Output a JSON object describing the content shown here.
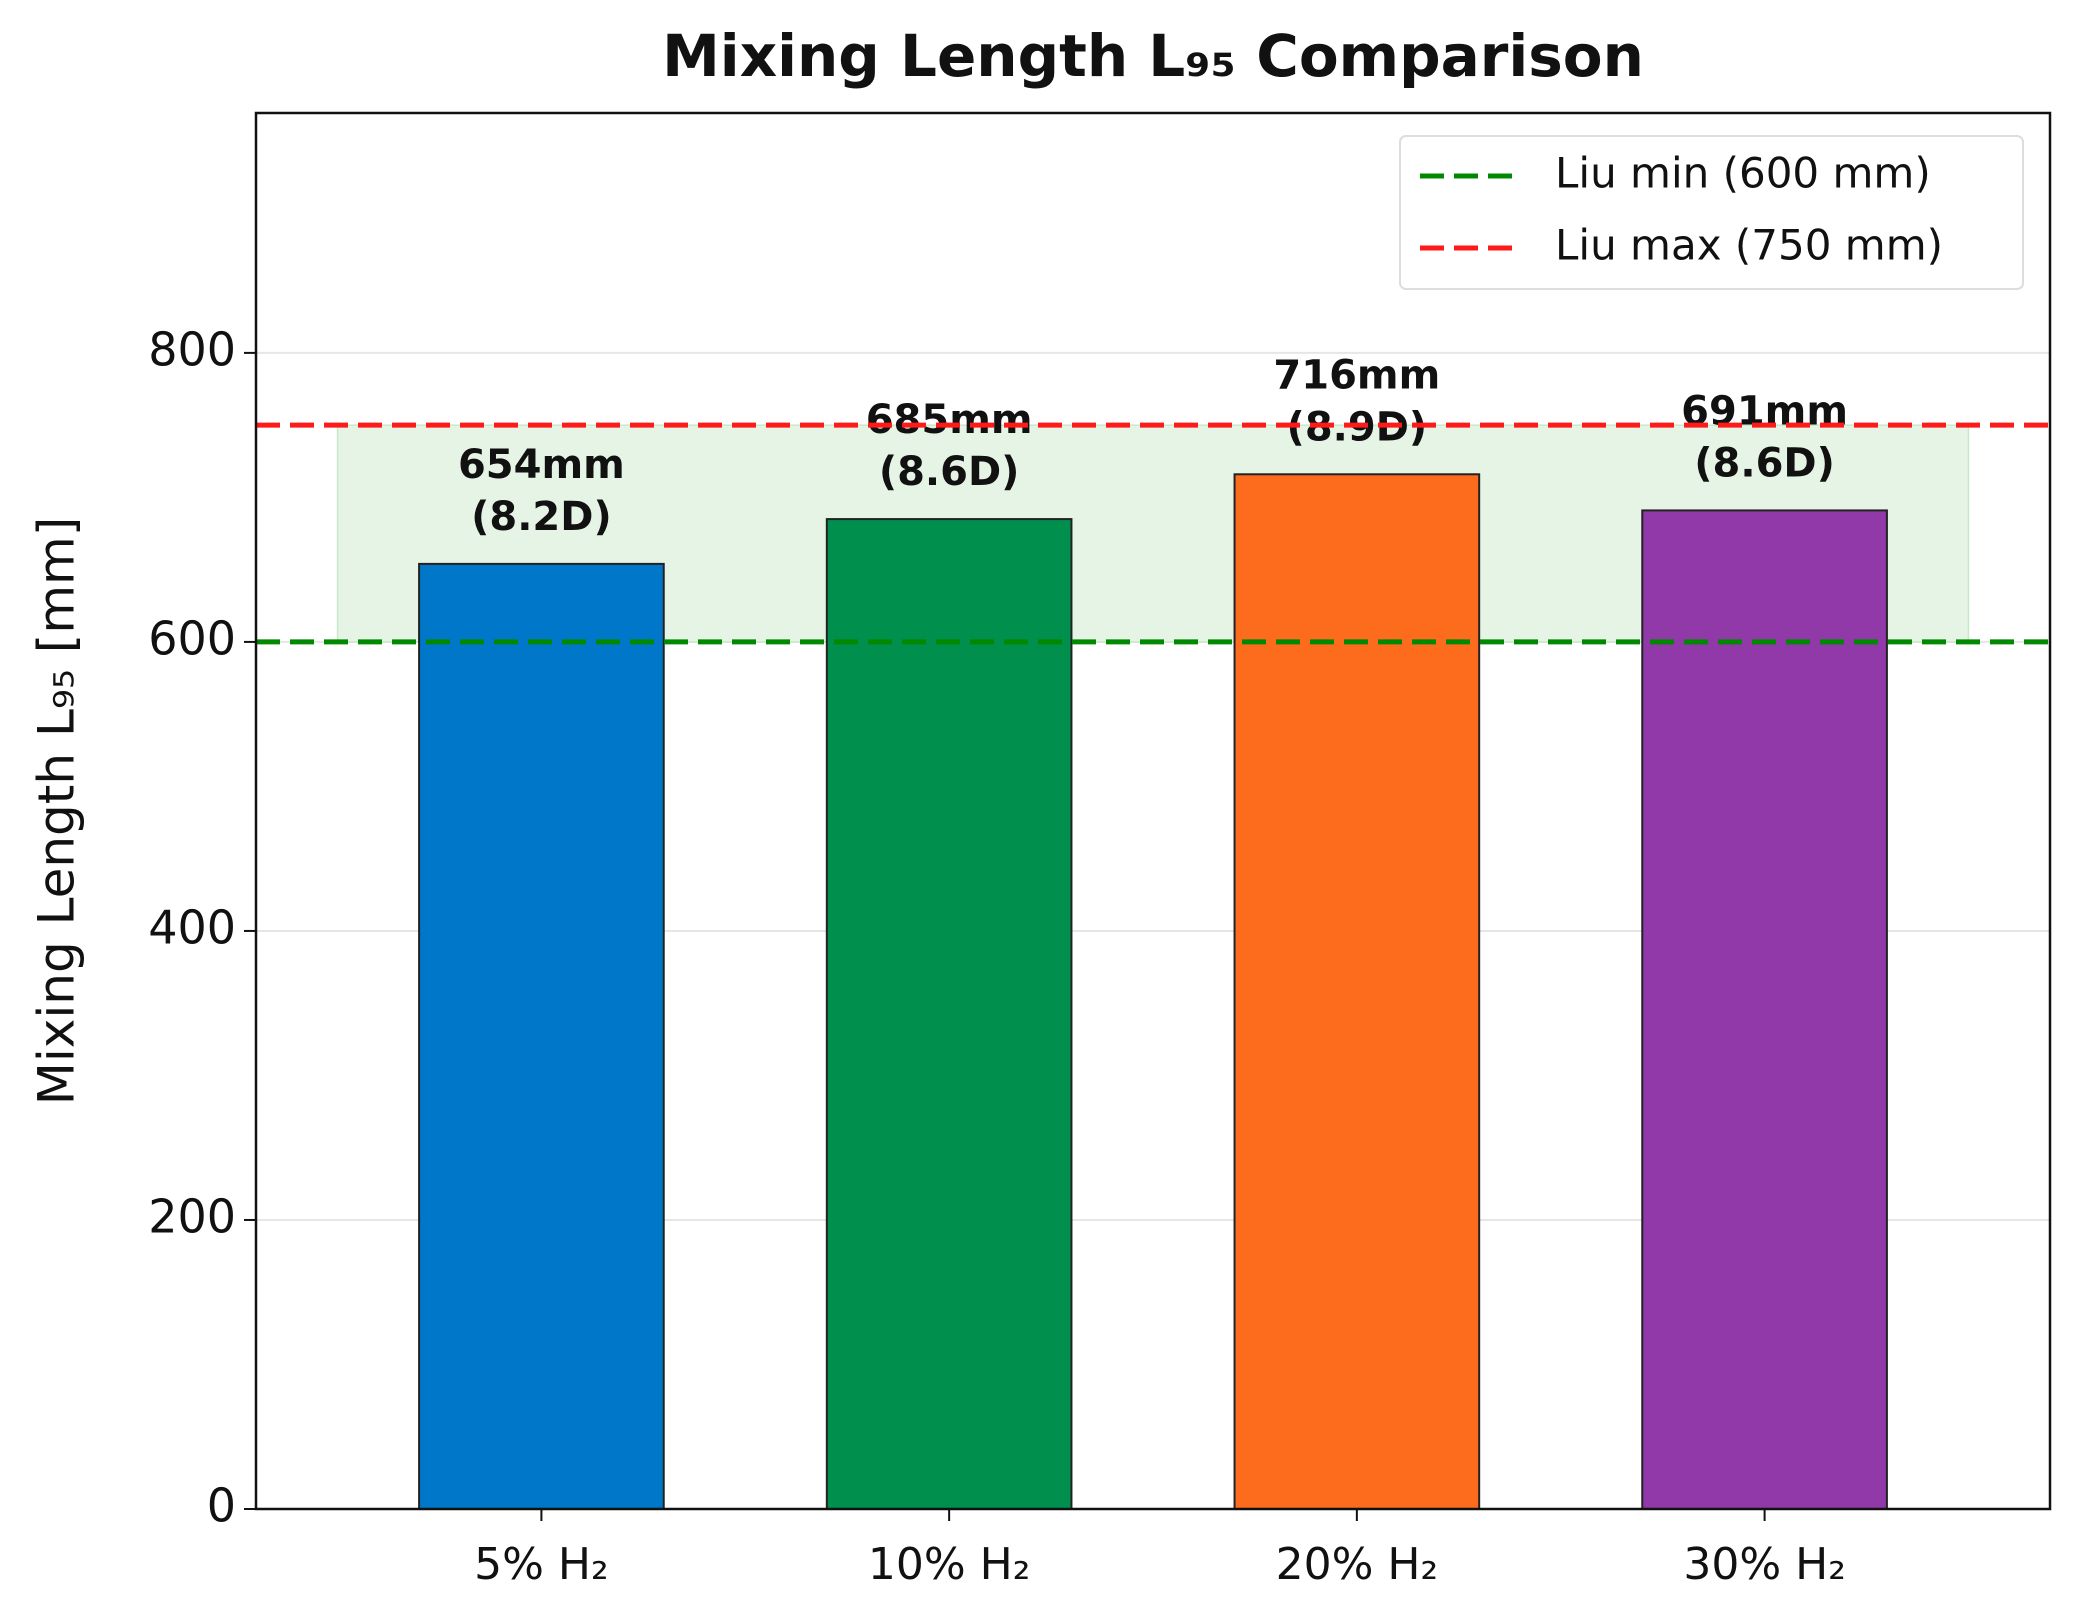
{
  "chart_data": {
    "type": "bar",
    "title": "Mixing Length L₉₅ Comparison",
    "ylabel": "Mixing Length L₉₅ [mm]",
    "categories": [
      "5% H₂",
      "10% H₂",
      "20% H₂",
      "30% H₂"
    ],
    "values": [
      654,
      685,
      716,
      691
    ],
    "value_labels": [
      "654mm",
      "685mm",
      "716mm",
      "691mm"
    ],
    "sub_labels": [
      "(8.2D)",
      "(8.6D)",
      "(8.9D)",
      "(8.6D)"
    ],
    "colors": [
      "#0077c8",
      "#008f4c",
      "#fd6b1c",
      "#9139a8"
    ],
    "ylim": [
      0,
      966
    ],
    "yticks": [
      0,
      200,
      400,
      600,
      800
    ],
    "grid": true,
    "shaded_range": {
      "range": [
        600,
        750
      ],
      "color": "#e6f4e6"
    },
    "reference_lines": [
      {
        "name": "Liu min (600 mm)",
        "value": 600,
        "color": "#008800"
      },
      {
        "name": "Liu max (750 mm)",
        "value": 750,
        "color": "#ff1a1a"
      }
    ],
    "legend": "upper right"
  }
}
